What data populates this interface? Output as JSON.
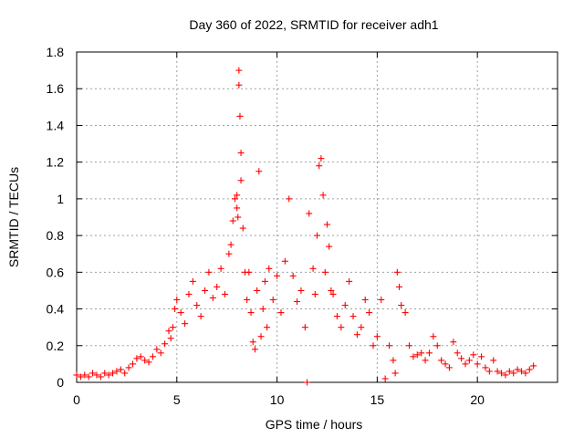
{
  "chart_data": {
    "type": "scatter",
    "title": "Day 360 of 2022, SRMTID for receiver adh1",
    "xlabel": "GPS time / hours",
    "ylabel": "SRMTID / TECUs",
    "xlim": [
      0,
      24
    ],
    "ylim": [
      0,
      1.8
    ],
    "xticks": [
      0,
      5,
      10,
      15,
      20
    ],
    "xtick_labels": [
      "0",
      "5",
      "10",
      "15",
      "20"
    ],
    "yticks": [
      0,
      0.2,
      0.4,
      0.6,
      0.8,
      1.0,
      1.2,
      1.4,
      1.6,
      1.8
    ],
    "ytick_labels": [
      "0",
      "0.2",
      "0.4",
      "0.6",
      "0.8",
      "1",
      "1.2",
      "1.4",
      "1.6",
      "1.8"
    ],
    "grid": true,
    "marker": "plus",
    "series_color": "#ff0000",
    "series": [
      {
        "name": "adh1",
        "x": [
          0.0,
          0.2,
          0.4,
          0.6,
          0.8,
          1.0,
          1.2,
          1.4,
          1.6,
          1.8,
          2.0,
          2.2,
          2.4,
          2.6,
          2.8,
          3.0,
          3.2,
          3.4,
          3.6,
          3.8,
          4.0,
          4.2,
          4.4,
          4.6,
          4.7,
          4.8,
          4.9,
          5.0,
          5.2,
          5.4,
          5.6,
          5.8,
          6.0,
          6.2,
          6.4,
          6.6,
          6.8,
          7.0,
          7.2,
          7.4,
          7.6,
          7.7,
          7.8,
          7.9,
          8.0,
          8.0,
          8.05,
          8.1,
          8.1,
          8.15,
          8.2,
          8.2,
          8.3,
          8.4,
          8.5,
          8.6,
          8.7,
          8.8,
          8.9,
          9.0,
          9.1,
          9.2,
          9.3,
          9.4,
          9.5,
          9.6,
          9.8,
          10.0,
          10.2,
          10.4,
          10.6,
          10.8,
          11.0,
          11.2,
          11.4,
          11.5,
          11.6,
          11.8,
          11.9,
          12.0,
          12.1,
          12.2,
          12.3,
          12.4,
          12.5,
          12.6,
          12.7,
          12.8,
          13.0,
          13.2,
          13.4,
          13.6,
          13.8,
          14.0,
          14.2,
          14.4,
          14.6,
          14.8,
          15.0,
          15.2,
          15.4,
          15.6,
          15.8,
          15.9,
          16.0,
          16.1,
          16.2,
          16.4,
          16.6,
          16.8,
          17.0,
          17.2,
          17.4,
          17.6,
          17.8,
          18.0,
          18.2,
          18.4,
          18.6,
          18.8,
          19.0,
          19.2,
          19.4,
          19.6,
          19.8,
          20.0,
          20.2,
          20.4,
          20.6,
          20.8,
          21.0,
          21.2,
          21.4,
          21.6,
          21.8,
          22.0,
          22.2,
          22.4,
          22.6,
          22.8
        ],
        "y": [
          0.04,
          0.03,
          0.04,
          0.03,
          0.05,
          0.04,
          0.03,
          0.05,
          0.04,
          0.05,
          0.06,
          0.07,
          0.05,
          0.08,
          0.1,
          0.13,
          0.14,
          0.12,
          0.11,
          0.14,
          0.18,
          0.16,
          0.21,
          0.28,
          0.24,
          0.3,
          0.4,
          0.45,
          0.38,
          0.32,
          0.48,
          0.55,
          0.42,
          0.36,
          0.5,
          0.6,
          0.46,
          0.52,
          0.62,
          0.48,
          0.7,
          0.75,
          0.88,
          1.0,
          1.02,
          0.95,
          0.9,
          1.7,
          1.62,
          1.45,
          1.25,
          1.1,
          0.84,
          0.6,
          0.45,
          0.6,
          0.38,
          0.22,
          0.18,
          0.5,
          1.15,
          0.25,
          0.4,
          0.55,
          0.3,
          0.62,
          0.45,
          0.58,
          0.38,
          0.66,
          1.0,
          0.58,
          0.44,
          0.5,
          0.3,
          0.0,
          0.92,
          0.62,
          0.48,
          0.8,
          1.18,
          1.22,
          1.02,
          0.6,
          0.86,
          0.74,
          0.5,
          0.48,
          0.36,
          0.3,
          0.42,
          0.55,
          0.36,
          0.26,
          0.3,
          0.45,
          0.38,
          0.2,
          0.25,
          0.45,
          0.02,
          0.2,
          0.12,
          0.05,
          0.6,
          0.52,
          0.42,
          0.38,
          0.2,
          0.14,
          0.15,
          0.16,
          0.12,
          0.16,
          0.25,
          0.2,
          0.12,
          0.1,
          0.08,
          0.22,
          0.16,
          0.13,
          0.1,
          0.12,
          0.15,
          0.1,
          0.14,
          0.08,
          0.06,
          0.12,
          0.06,
          0.05,
          0.04,
          0.06,
          0.05,
          0.07,
          0.06,
          0.05,
          0.07,
          0.09
        ]
      }
    ]
  }
}
